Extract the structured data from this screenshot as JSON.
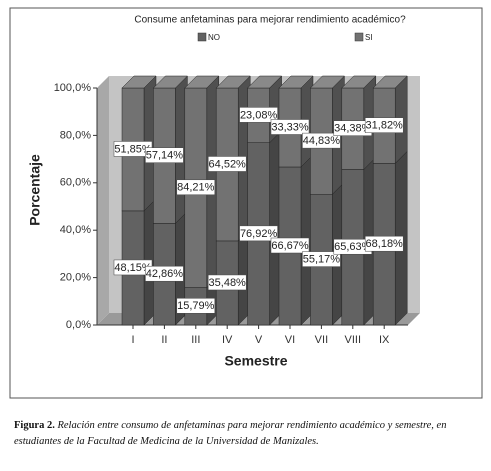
{
  "chart_data": {
    "type": "bar",
    "stacked": true,
    "title": "Consume anfetaminas para mejorar rendimiento académico?",
    "x_label": "Semestre",
    "y_label": "Porcentaje",
    "legend": "top",
    "categories": [
      "I",
      "II",
      "III",
      "IV",
      "V",
      "VI",
      "VII",
      "VIII",
      "IX"
    ],
    "series": [
      {
        "name": "NO",
        "color": "#626262",
        "values": [
          48.15,
          42.86,
          15.79,
          35.48,
          76.92,
          66.67,
          55.17,
          65.63,
          68.18
        ],
        "value_labels": [
          "48,15%",
          "42,86%",
          "15,79%",
          "35,48%",
          "76,92%",
          "66,67%",
          "55,17%",
          "65,63%",
          "68,18%"
        ]
      },
      {
        "name": "SI",
        "color": "#727272",
        "values": [
          51.85,
          57.14,
          84.21,
          64.52,
          23.08,
          33.33,
          44.83,
          34.38,
          31.82
        ],
        "value_labels": [
          "51,85%",
          "57,14%",
          "84,21%",
          "64,52%",
          "23,08%",
          "33,33%",
          "44,83%",
          "34,38%",
          "31,82%"
        ]
      }
    ],
    "ylim": [
      0,
      100
    ],
    "yticks": [
      {
        "value": 0,
        "label": "0,0%"
      },
      {
        "value": 20,
        "label": "20,0%"
      },
      {
        "value": 40,
        "label": "40,0%"
      },
      {
        "value": 60,
        "label": "60,0%"
      },
      {
        "value": 80,
        "label": "80,0%"
      },
      {
        "value": 100,
        "label": "100,0%"
      }
    ]
  },
  "caption": {
    "label": "Figura 2.",
    "text": "Relación entre consumo de anfetaminas para mejorar rendimiento académico y semestre, en estudiantes de la Facultad de Medicina de la Universidad de Manizales."
  }
}
